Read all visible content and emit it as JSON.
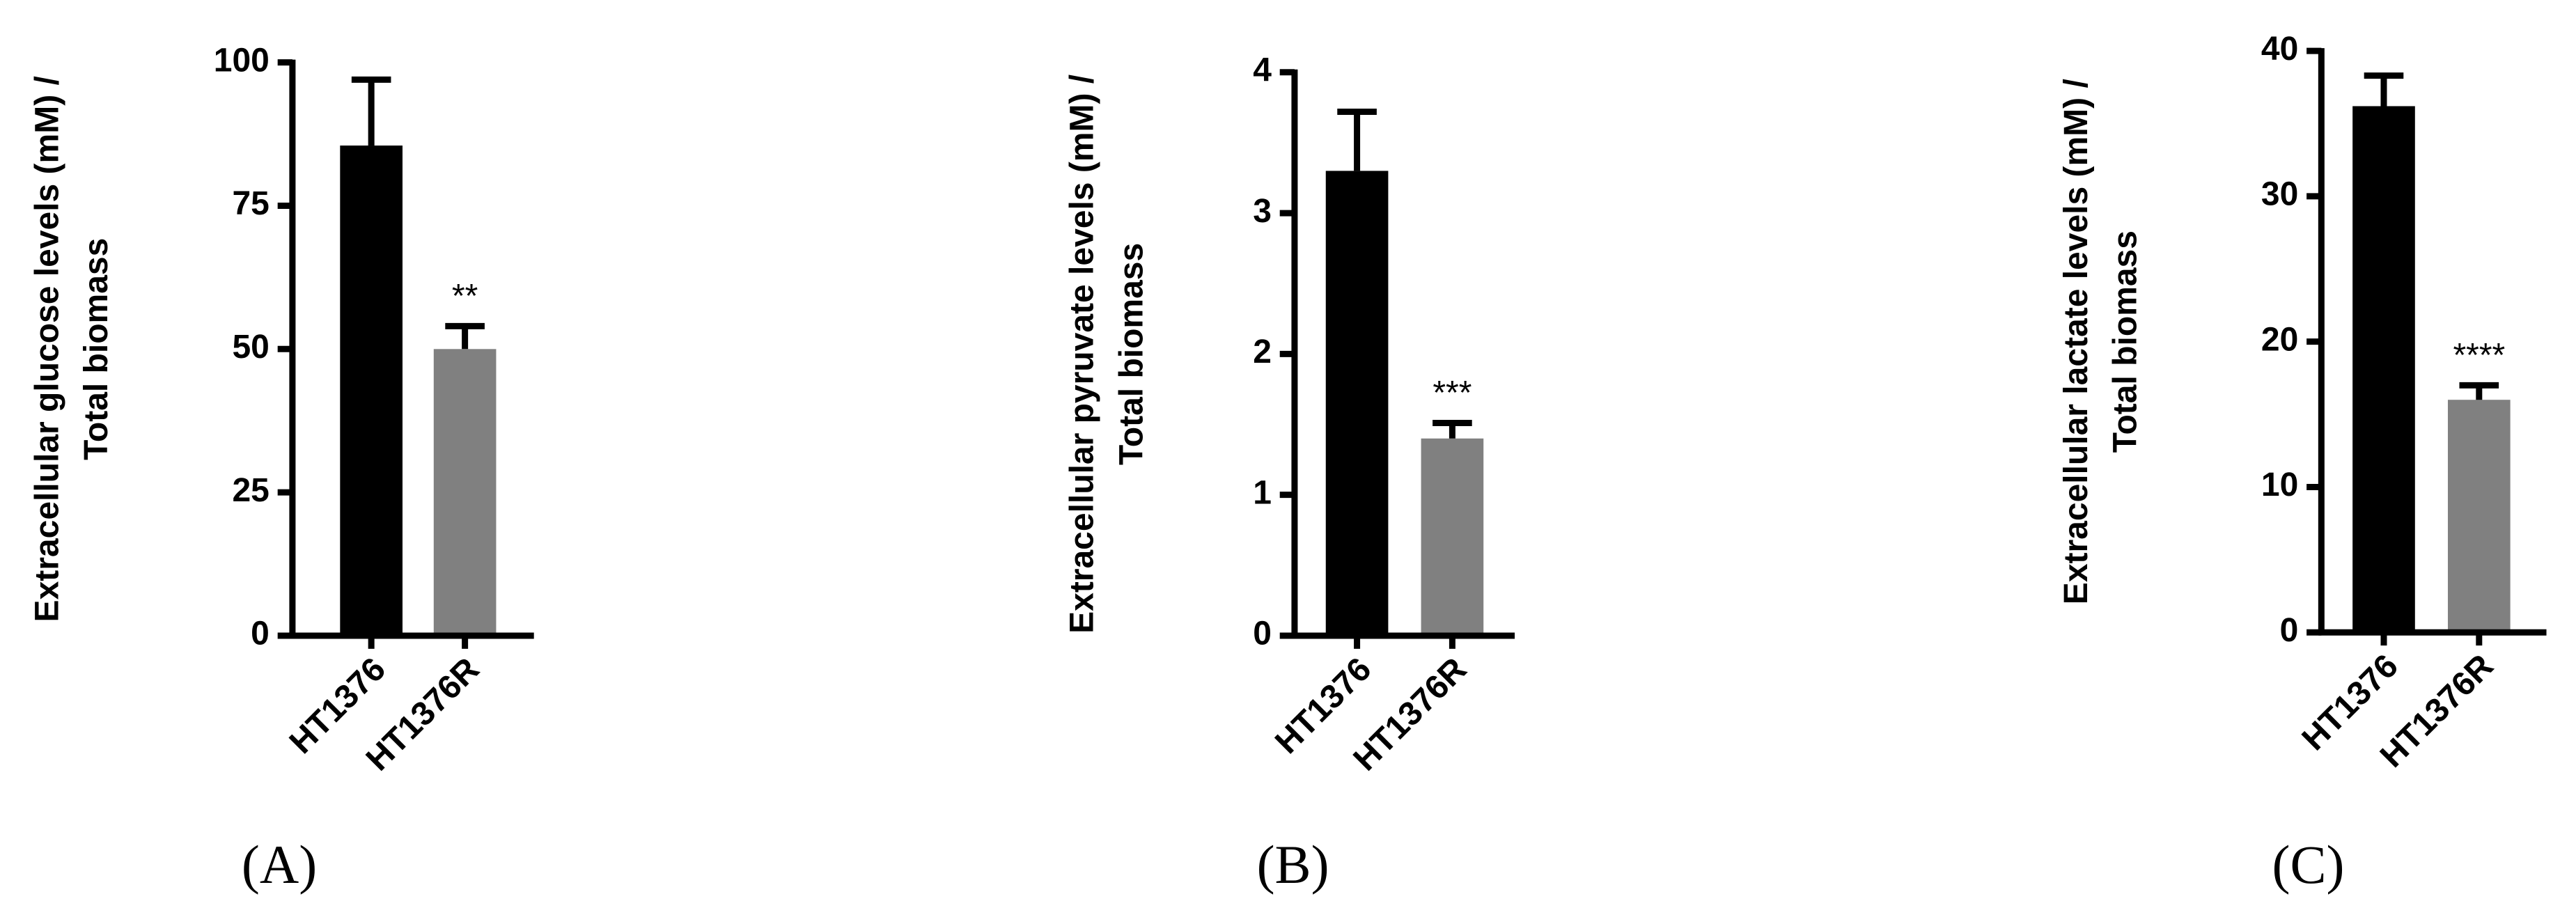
{
  "chart_data": [
    {
      "type": "bar",
      "panel": "(A)",
      "ylabel": [
        "Extracellular glucose levels (mM) /",
        "Total biomass"
      ],
      "categories": [
        "HT1376",
        "HT1376R"
      ],
      "values": [
        85.5,
        50
      ],
      "errors": [
        11.5,
        4
      ],
      "colors": [
        "#000000",
        "#808080"
      ],
      "ylim": [
        0,
        100
      ],
      "yticks": [
        0,
        25,
        50,
        75,
        100
      ],
      "annotations": [
        {
          "text": "**",
          "x": "HT1376R"
        }
      ]
    },
    {
      "type": "bar",
      "panel": "(B)",
      "ylabel": [
        "Extracellular pyruvate levels (mM) /",
        "Total biomass"
      ],
      "categories": [
        "HT1376",
        "HT1376R"
      ],
      "values": [
        3.3,
        1.4
      ],
      "errors": [
        0.42,
        0.11
      ],
      "colors": [
        "#000000",
        "#808080"
      ],
      "ylim": [
        0,
        4
      ],
      "yticks": [
        0,
        1,
        2,
        3,
        4
      ],
      "annotations": [
        {
          "text": "***",
          "x": "HT1376R"
        }
      ]
    },
    {
      "type": "bar",
      "panel": "(C)",
      "ylabel": [
        "Extracellular lactate levels (mM) /",
        "Total biomass"
      ],
      "categories": [
        "HT1376",
        "HT1376R"
      ],
      "values": [
        36.2,
        16
      ],
      "errors": [
        2.1,
        1
      ],
      "colors": [
        "#000000",
        "#808080"
      ],
      "ylim": [
        0,
        40
      ],
      "yticks": [
        0,
        10,
        20,
        30,
        40
      ],
      "annotations": [
        {
          "text": "****",
          "x": "HT1376R"
        }
      ]
    }
  ]
}
